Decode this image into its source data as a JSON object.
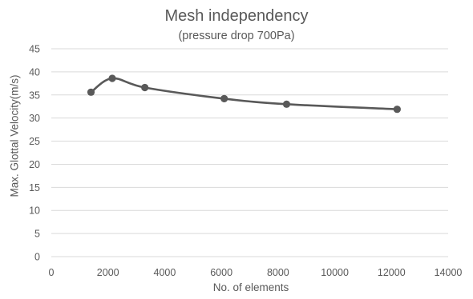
{
  "chart_data": {
    "type": "line",
    "title": "Mesh independency",
    "subtitle": "(pressure drop 700Pa)",
    "xlabel": "No. of elements",
    "ylabel": "Max. Glottal Velocity(m/s)",
    "xlim": [
      0,
      14000
    ],
    "ylim": [
      0,
      45
    ],
    "xticks": [
      0,
      2000,
      4000,
      6000,
      8000,
      10000,
      12000,
      14000
    ],
    "yticks": [
      0,
      5,
      10,
      15,
      20,
      25,
      30,
      35,
      40,
      45
    ],
    "grid": true,
    "smooth": true,
    "series": [
      {
        "color": "#595959",
        "points": [
          {
            "x": 1400,
            "y": 35.6
          },
          {
            "x": 2150,
            "y": 38.6
          },
          {
            "x": 3300,
            "y": 36.6
          },
          {
            "x": 6100,
            "y": 34.2
          },
          {
            "x": 8300,
            "y": 33.0
          },
          {
            "x": 12200,
            "y": 31.9
          }
        ]
      }
    ],
    "colors": {
      "grid": "#d9d9d9",
      "text": "#595959",
      "line": "#595959"
    }
  }
}
